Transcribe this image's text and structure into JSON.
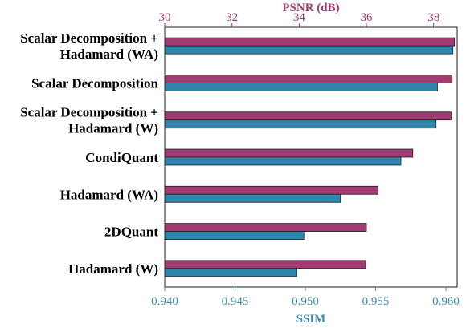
{
  "chart_data": {
    "type": "bar",
    "orientation": "horizontal",
    "categories": [
      "Scalar Decomposition +\nHadamard (WA)",
      "Scalar Decomposition",
      "Scalar Decomposition +\nHadamard (W)",
      "CondiQuant",
      "Hadamard (WA)",
      "2DQuant",
      "Hadamard (W)"
    ],
    "series": [
      {
        "name": "PSNR (dB)",
        "axis": "top",
        "color": "#a23b72",
        "values": [
          38.62,
          38.55,
          38.52,
          37.38,
          36.35,
          36.0,
          35.98
        ]
      },
      {
        "name": "SSIM",
        "axis": "bottom",
        "color": "#2e86ab",
        "values": [
          0.9605,
          0.9594,
          0.9593,
          0.9568,
          0.9525,
          0.9499,
          0.9494
        ]
      }
    ],
    "x_top": {
      "label": "PSNR (dB)",
      "range": [
        30,
        38.7
      ],
      "ticks": [
        "30",
        "32",
        "34",
        "36",
        "38"
      ],
      "tick_values": [
        30,
        32,
        34,
        36,
        38
      ]
    },
    "x_bottom": {
      "label": "SSIM",
      "range": [
        0.94,
        0.9608
      ],
      "ticks": [
        "0.940",
        "0.945",
        "0.950",
        "0.955",
        "0.960"
      ],
      "tick_values": [
        0.94,
        0.945,
        0.95,
        0.955,
        0.96
      ]
    },
    "grid": false,
    "legend": "none",
    "colors": {
      "psnr": "#a23b72",
      "ssim": "#2e86ab",
      "psnr_text": "#a23b72",
      "ssim_text": "#3b8fb0"
    }
  }
}
